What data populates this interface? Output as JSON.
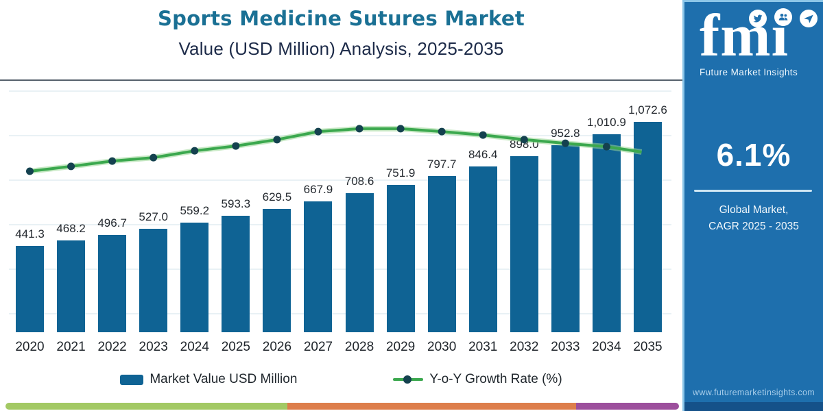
{
  "title": "Sports Medicine Sutures Market",
  "subtitle": "Value (USD Million) Analysis, 2025-2035",
  "legend": [
    {
      "label": "Market Value USD Million",
      "swatch_color": "#0f6394"
    },
    {
      "label": "Y-o-Y Growth Rate (%)",
      "line_color": "#3ba84e",
      "marker_color": "#14414f"
    }
  ],
  "panel": {
    "logo_text": "fmı",
    "logo_icons": [
      "bird-icon",
      "users-icon",
      "plane-icon"
    ],
    "logo_caption": "Future Market Insights",
    "cagr_value": "6.1%",
    "cagr_caption_line1": "Global Market,",
    "cagr_caption_line2": "CAGR 2025 - 2035",
    "website": "www.futuremarketinsights.com"
  },
  "colors": {
    "title": "#1a7094",
    "subtitle": "#1d2b49",
    "bar": "#0f6394",
    "line": "#3ba84e",
    "line_glow": "#9ad796",
    "marker": "#14414f",
    "panel_bg": "#1e6fad",
    "panel_border": "#8cc6e8",
    "strip_green": "#a3c964",
    "strip_orange": "#dd7e4b",
    "strip_purple": "#9c4f9c"
  },
  "chart_data": {
    "type": "bar",
    "subtype": "combo-bar-line",
    "title": "Sports Medicine Sutures Market Value (USD Million) Analysis, 2025-2035",
    "xlabel": "",
    "ylabel": "Market Value USD Million",
    "grid": "faint horizontal",
    "legend_position": "bottom",
    "categories": [
      "2020",
      "2021",
      "2022",
      "2023",
      "2024",
      "2025",
      "2026",
      "2027",
      "2028",
      "2029",
      "2030",
      "2031",
      "2032",
      "2033",
      "2034",
      "2035"
    ],
    "series": [
      {
        "name": "Market Value USD Million",
        "type": "bar",
        "values": [
          441.3,
          468.2,
          496.7,
          527.0,
          559.2,
          593.3,
          629.5,
          667.9,
          708.6,
          751.9,
          797.7,
          846.4,
          898.0,
          952.8,
          1010.9,
          1072.6
        ],
        "labels": [
          "441.3",
          "468.2",
          "496.7",
          "527.0",
          "559.2",
          "593.3",
          "629.5",
          "667.9",
          "708.6",
          "751.9",
          "797.7",
          "846.4",
          "898.0",
          "952.8",
          "1,010.9",
          "1,072.6"
        ]
      },
      {
        "name": "Y-o-Y Growth Rate (%)",
        "type": "line",
        "values_labeled": false,
        "rendered_rel_heights": [
          0.662,
          0.682,
          0.704,
          0.718,
          0.746,
          0.766,
          0.792,
          0.825,
          0.837,
          0.837,
          0.825,
          0.811,
          0.792,
          0.777,
          0.763,
          0.741
        ]
      }
    ]
  }
}
